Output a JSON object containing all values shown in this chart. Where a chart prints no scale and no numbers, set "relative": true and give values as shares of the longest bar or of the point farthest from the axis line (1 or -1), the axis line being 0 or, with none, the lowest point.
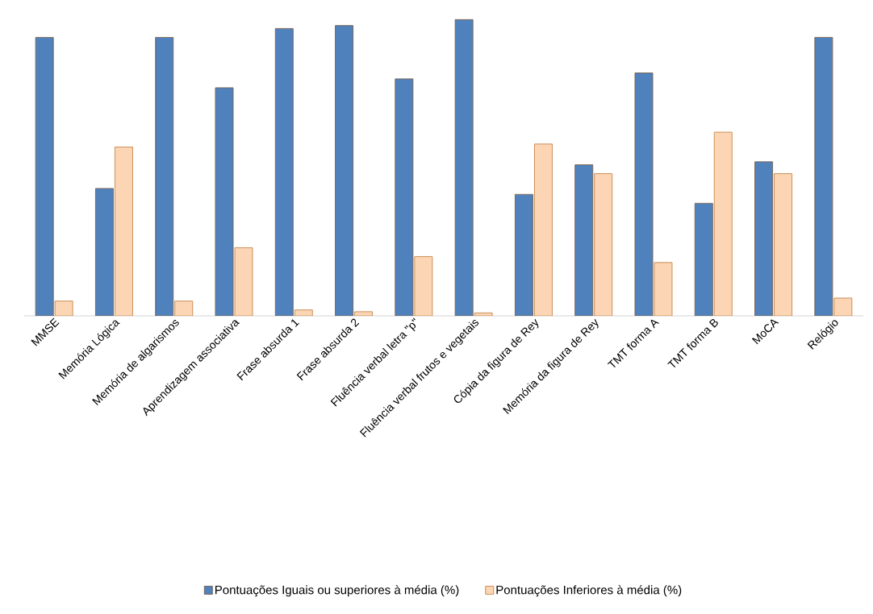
{
  "chart_data": {
    "type": "bar",
    "relative": true,
    "legend": "bottom",
    "categories": [
      "MMSE",
      "Memória Lógica",
      "Memória de algarismos",
      "Aprendizagem associativa",
      "Frase absurda 1",
      "Frase absurda 2",
      "Fluência verbal letra \"p\"",
      "Fluência verbal frutos e vegetais",
      "Cópia da figura de Rey",
      "Memória da figura de Rey",
      "TMT forma A",
      "TMT forma B",
      "MoCA",
      "Relógio"
    ],
    "series": [
      {
        "name": "Pontuações Iguais ou superiores à média (%)",
        "color": "#4f81bd",
        "values": [
          0.94,
          0.43,
          0.94,
          0.77,
          0.97,
          0.98,
          0.8,
          1.0,
          0.41,
          0.51,
          0.82,
          0.38,
          0.52,
          0.94
        ]
      },
      {
        "name": "Pontuações Inferiores à média (%)",
        "color": "#fcd5b5",
        "values": [
          0.05,
          0.57,
          0.05,
          0.23,
          0.02,
          0.014,
          0.2,
          0.01,
          0.58,
          0.48,
          0.18,
          0.62,
          0.48,
          0.06
        ]
      }
    ]
  }
}
